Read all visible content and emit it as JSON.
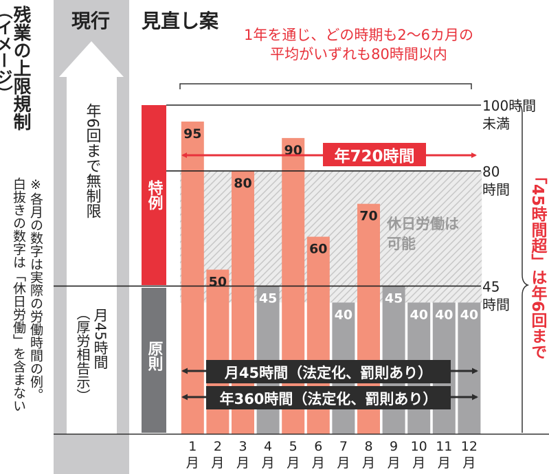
{
  "chart_data": {
    "type": "bar",
    "title": "残業の上限規制（イメージ）",
    "categories": [
      "1月",
      "2月",
      "3月",
      "4月",
      "5月",
      "6月",
      "7月",
      "8月",
      "9月",
      "10月",
      "11月",
      "12月"
    ],
    "series": [
      {
        "name": "",
        "values": [
          95,
          50,
          80,
          45,
          90,
          60,
          40,
          70,
          45,
          40,
          40,
          40
        ]
      }
    ],
    "bar_color_type": [
      "over",
      "over",
      "over",
      "normal",
      "over",
      "over",
      "normal",
      "over",
      "normal",
      "normal",
      "normal",
      "normal"
    ],
    "ylim": [
      0,
      100
    ],
    "reference_lines": [
      {
        "value": 100,
        "label": "100時間未満"
      },
      {
        "value": 80,
        "label": "80時間"
      },
      {
        "value": 45,
        "label": "45時間"
      }
    ],
    "hatched_region": {
      "from": 40,
      "to": 80,
      "label": "休日労働は可能"
    },
    "colors": {
      "over_bar": "#f4917a",
      "normal_bar": "#a4a4a6",
      "tokurei": "#e8323b",
      "gensoku": "#76777a",
      "current_col": "#c9c9cb",
      "accent_red": "#e8323b",
      "banner": "#2d2d2d"
    }
  },
  "headings": {
    "current": "現行",
    "proposal": "見直し案"
  },
  "title_lines": [
    "残業の上限規制",
    "（イメージ）"
  ],
  "note_lines": [
    "※各月の数字は実際の労働時間の例。",
    "白抜きの数字は「休日労働」を含まない"
  ],
  "current": {
    "tokurei_text": "年6回まで無制限",
    "gensoku_lines": [
      "月45時間",
      "（厚労相告示）"
    ]
  },
  "sections": {
    "tokurei": "特例",
    "gensoku": "原則"
  },
  "annotations": {
    "top_note_lines": [
      "1年を通じ、どの時期も2～6カ月の",
      "平均がいずれも80時間以内"
    ],
    "annual_720": "年720時間",
    "monthly_45": "月45時間（法定化、罰則あり）",
    "annual_360": "年360時間（法定化、罰則あり）",
    "right_side": "「45時間超」は年6回まで"
  }
}
